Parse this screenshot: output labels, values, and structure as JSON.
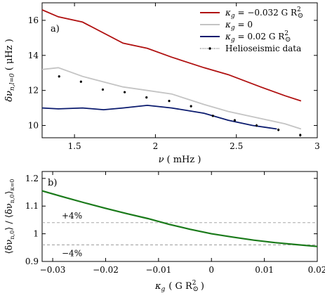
{
  "chart_data": [
    {
      "type": "line",
      "panel_label": "a)",
      "xlabel_sym": "ν",
      "xlabel_unit": "( mHz )",
      "ylabel_main": "δν",
      "ylabel_sub": "n,l=0",
      "ylabel_unit": "( μHz )",
      "xlim": [
        1.3,
        3.0
      ],
      "ylim": [
        9.3,
        17.0
      ],
      "xticks": [
        1.5,
        2,
        2.5,
        3
      ],
      "xtick_labels": [
        "1.5",
        "2",
        "2.5",
        "3"
      ],
      "yticks": [
        10,
        12,
        14,
        16
      ],
      "ytick_labels": [
        "10",
        "12",
        "14",
        "16"
      ],
      "legend_position": "top-right",
      "series": [
        {
          "legend_lhs": "κ",
          "legend_sub": "g",
          "legend_rhs": " = −0.032 G R",
          "legend_sup": "2",
          "legend_suffix": "⊙",
          "color": "#b01010",
          "x": [
            1.3,
            1.4,
            1.55,
            1.8,
            1.95,
            2.1,
            2.3,
            2.45,
            2.65,
            2.8,
            2.9
          ],
          "y": [
            16.6,
            16.2,
            15.9,
            14.7,
            14.4,
            13.9,
            13.3,
            12.9,
            12.2,
            11.7,
            11.4
          ]
        },
        {
          "legend_lhs": "κ",
          "legend_sub": "g",
          "legend_rhs": " = 0",
          "legend_sup": "",
          "legend_suffix": "",
          "color": "#c4c4c4",
          "x": [
            1.3,
            1.4,
            1.55,
            1.8,
            1.95,
            2.1,
            2.3,
            2.45,
            2.65,
            2.8,
            2.9
          ],
          "y": [
            13.2,
            13.3,
            12.8,
            12.2,
            12.0,
            11.8,
            11.2,
            10.8,
            10.4,
            10.1,
            9.8
          ]
        },
        {
          "legend_lhs": "κ",
          "legend_sub": "g",
          "legend_rhs": " = 0.02 G R",
          "legend_sup": "2",
          "legend_suffix": "⊙",
          "color": "#0a1a6e",
          "x": [
            1.3,
            1.4,
            1.55,
            1.68,
            1.8,
            1.95,
            2.1,
            2.3,
            2.45,
            2.6,
            2.75
          ],
          "y": [
            11.0,
            10.95,
            11.0,
            10.9,
            11.0,
            11.15,
            11.0,
            10.7,
            10.3,
            10.0,
            9.8
          ]
        }
      ],
      "scatter": {
        "name": "Helioseismic data",
        "color": "#000000",
        "x": [
          1.405,
          1.54,
          1.675,
          1.81,
          1.945,
          2.085,
          2.22,
          2.355,
          2.49,
          2.625,
          2.76,
          2.895
        ],
        "y": [
          12.8,
          12.5,
          12.05,
          11.9,
          11.6,
          11.4,
          11.1,
          10.55,
          10.3,
          10.0,
          9.75,
          9.45
        ],
        "err": [
          0.06,
          0.06,
          0.06,
          0.06,
          0.06,
          0.06,
          0.07,
          0.07,
          0.07,
          0.08,
          0.08,
          0.09
        ]
      }
    },
    {
      "type": "line",
      "panel_label": "b)",
      "xlabel_lhs": "κ",
      "xlabel_sub": "g",
      "xlabel_rhs": "( G R",
      "xlabel_sup": "2",
      "xlabel_suffix": "⊙",
      "xlabel_close": ")",
      "ylabel_text": "⟨δν",
      "ylabel_sub1": "n,0",
      "ylabel_mid": "⟩ / ⟨δν",
      "ylabel_sub2": "n,0",
      "ylabel_end": "⟩",
      "ylabel_sub3": "κ=0",
      "xlim": [
        -0.032,
        0.02
      ],
      "ylim": [
        0.9,
        1.225
      ],
      "xticks": [
        -0.03,
        -0.02,
        -0.01,
        0,
        0.01,
        0.02
      ],
      "xtick_labels": [
        "−0.03",
        "−0.02",
        "−0.01",
        "0",
        "0.01",
        "0.02"
      ],
      "yticks": [
        0.9,
        1.0,
        1.1,
        1.2
      ],
      "ytick_labels": [
        "0.9",
        "1",
        "1.1",
        "1.2"
      ],
      "series": [
        {
          "color": "#1a7a1a",
          "x": [
            -0.032,
            -0.028,
            -0.024,
            -0.02,
            -0.016,
            -0.012,
            -0.008,
            -0.004,
            0.0,
            0.004,
            0.008,
            0.012,
            0.016,
            0.02
          ],
          "y": [
            1.155,
            1.133,
            1.112,
            1.092,
            1.073,
            1.055,
            1.034,
            1.016,
            1.0,
            0.988,
            0.977,
            0.968,
            0.961,
            0.954
          ]
        }
      ],
      "hlines": [
        {
          "y": 1.04,
          "label": "+4%",
          "color": "#999999"
        },
        {
          "y": 0.96,
          "label": "−4%",
          "color": "#999999"
        }
      ]
    }
  ]
}
